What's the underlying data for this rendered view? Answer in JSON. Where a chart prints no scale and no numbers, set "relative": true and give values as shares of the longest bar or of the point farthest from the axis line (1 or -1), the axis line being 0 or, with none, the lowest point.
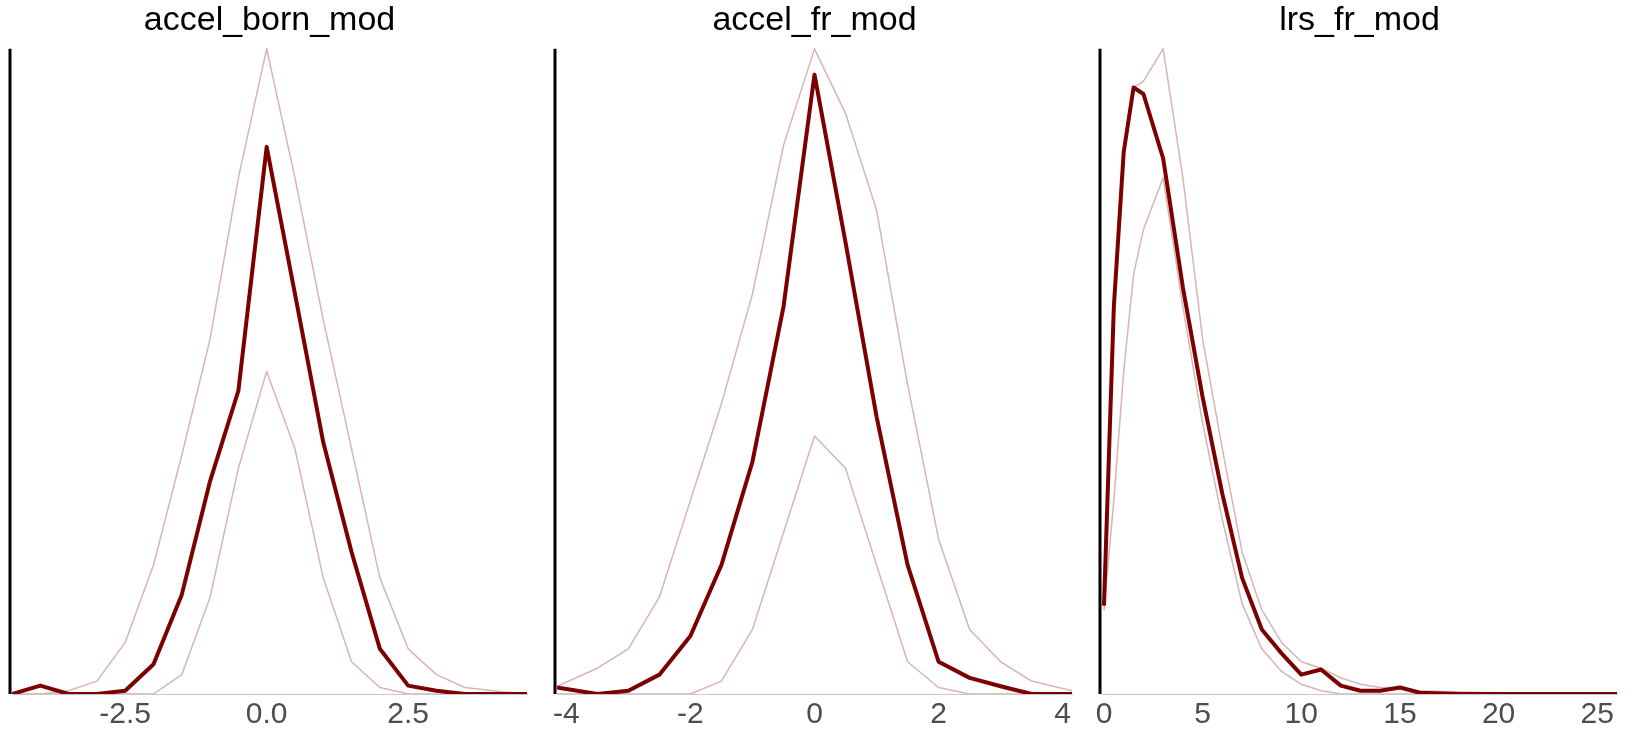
{
  "chart_data": [
    {
      "type": "line",
      "title": "accel_born_mod",
      "relative": true,
      "xlim": [
        -4.5,
        4.6
      ],
      "xticks": [
        {
          "value": -2.5,
          "label": "-2.5"
        },
        {
          "value": 0,
          "label": "0.0"
        },
        {
          "value": 2.5,
          "label": "2.5"
        }
      ],
      "x": [
        -4.5,
        -4.0,
        -3.5,
        -3.0,
        -2.5,
        -2.0,
        -1.5,
        -1.0,
        -0.5,
        0,
        0.5,
        1.0,
        1.5,
        2.0,
        2.5,
        3.0,
        3.5,
        4.0,
        4.6
      ],
      "series": [
        {
          "color": "#d8b4b4",
          "values": [
            0,
            0,
            0,
            0,
            0,
            0,
            0.03,
            0.15,
            0.35,
            0.5,
            0.38,
            0.18,
            0.05,
            0.01,
            0,
            0,
            0,
            0,
            0
          ]
        },
        {
          "color": "#d8b4b4",
          "values": [
            0,
            0,
            0.005,
            0.02,
            0.08,
            0.2,
            0.37,
            0.55,
            0.8,
            1.0,
            0.8,
            0.58,
            0.38,
            0.18,
            0.07,
            0.03,
            0.01,
            0.005,
            0
          ]
        },
        {
          "color": "#7b0000",
          "values": [
            0,
            0.013,
            0,
            0,
            0.005,
            0.046,
            0.154,
            0.33,
            0.47,
            0.848,
            0.62,
            0.39,
            0.22,
            0.07,
            0.013,
            0.005,
            0,
            0,
            0
          ]
        }
      ]
    },
    {
      "type": "line",
      "title": "accel_fr_mod",
      "relative": true,
      "xlim": [
        -4.15,
        4.15
      ],
      "xticks": [
        -4,
        -2,
        0,
        2,
        4
      ],
      "x": [
        -4.15,
        -3.5,
        -3,
        -2.5,
        -2,
        -1.5,
        -1,
        -0.5,
        0,
        0.5,
        1,
        1.5,
        2,
        2.5,
        3,
        3.5,
        4.15
      ],
      "series": [
        {
          "color": "#d8b4b4",
          "values": [
            0,
            0,
            0,
            0,
            0,
            0.02,
            0.1,
            0.25,
            0.4,
            0.35,
            0.2,
            0.05,
            0.01,
            0,
            0,
            0,
            0
          ]
        },
        {
          "color": "#d8b4b4",
          "values": [
            0.012,
            0.04,
            0.07,
            0.15,
            0.3,
            0.45,
            0.62,
            0.85,
            1.0,
            0.9,
            0.75,
            0.48,
            0.24,
            0.1,
            0.05,
            0.02,
            0.005
          ]
        },
        {
          "color": "#7b0000",
          "values": [
            0.01,
            0,
            0.005,
            0.03,
            0.09,
            0.2,
            0.36,
            0.6,
            0.96,
            0.7,
            0.43,
            0.2,
            0.05,
            0.025,
            0.012,
            0,
            0
          ]
        }
      ]
    },
    {
      "type": "line",
      "title": "lrs_fr_mod",
      "relative": true,
      "xlim": [
        -0.1,
        26
      ],
      "xticks": [
        0,
        5,
        10,
        15,
        20,
        25
      ],
      "x": [
        0,
        0.5,
        1,
        1.5,
        2,
        3,
        4,
        5,
        6,
        7,
        8,
        9,
        10,
        11,
        12,
        13,
        14,
        15,
        16,
        18,
        20,
        26
      ],
      "series": [
        {
          "color": "#d8b4b4",
          "values": [
            0.13,
            0.3,
            0.5,
            0.65,
            0.72,
            0.8,
            0.6,
            0.42,
            0.27,
            0.14,
            0.07,
            0.035,
            0.015,
            0.005,
            0,
            0,
            0,
            0,
            0,
            0,
            0,
            0
          ]
        },
        {
          "color": "#d8b4b4",
          "values": [
            0.14,
            0.6,
            0.84,
            0.94,
            0.95,
            1.0,
            0.8,
            0.55,
            0.38,
            0.22,
            0.13,
            0.08,
            0.05,
            0.04,
            0.025,
            0.015,
            0.01,
            0.01,
            0.005,
            0.003,
            0.002,
            0
          ]
        },
        {
          "color": "#7b0000",
          "values": [
            0.137,
            0.6,
            0.84,
            0.94,
            0.93,
            0.83,
            0.63,
            0.46,
            0.31,
            0.18,
            0.1,
            0.063,
            0.03,
            0.038,
            0.013,
            0.005,
            0.005,
            0.01,
            0.002,
            0,
            0,
            0
          ]
        }
      ]
    }
  ]
}
